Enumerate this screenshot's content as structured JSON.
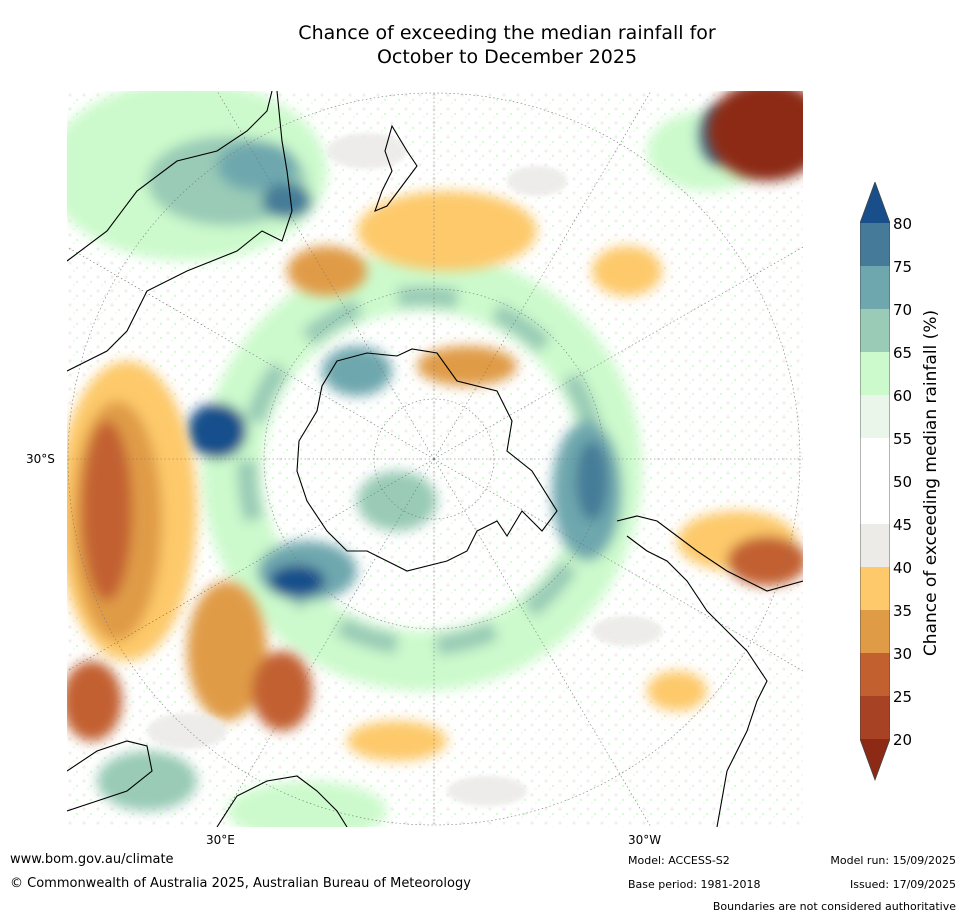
{
  "title": {
    "line1": "Chance of exceeding the median rainfall for",
    "line2": "October to December 2025"
  },
  "map": {
    "projection": "south-polar-stereographic",
    "labels": {
      "lat": "30°S",
      "lon_east": "30°E",
      "lon_west": "30°W"
    },
    "region_colors": {
      "very_dry": "#8c2a16",
      "dry": "#c26030",
      "dryish": "#e09b46",
      "slightly_dry": "#fdc96a",
      "neutral": "#ecebe8",
      "white": "#ffffff",
      "slightly_wet": "#ccfacc",
      "wet": "#99cbb6",
      "wetter": "#6ea7ae",
      "very_wet": "#457b98",
      "extreme_wet": "#184f8b"
    }
  },
  "colorbar": {
    "label": "Chance of exceeding median rainfall (%)",
    "ticks": [
      "80",
      "75",
      "70",
      "65",
      "60",
      "55",
      "50",
      "45",
      "40",
      "35",
      "30",
      "25",
      "20"
    ],
    "colors": [
      "#184f8b",
      "#457b98",
      "#6ea7ae",
      "#99cbb6",
      "#ccfacc",
      "#eaf6ea",
      "#ffffff",
      "#ffffff",
      "#ecebe8",
      "#fdc96a",
      "#e09b46",
      "#c26030",
      "#a84225",
      "#8c2a16"
    ]
  },
  "footer": {
    "website": "www.bom.gov.au/climate",
    "copyright": "© Commonwealth of Australia 2025, Australian Bureau of Meteorology",
    "model": "Model: ACCESS-S2",
    "base_period": "Base period: 1981-2018",
    "model_run": "Model run: 15/09/2025",
    "issued": "Issued: 17/09/2025",
    "disclaimer": "Boundaries are not considered authoritative"
  }
}
